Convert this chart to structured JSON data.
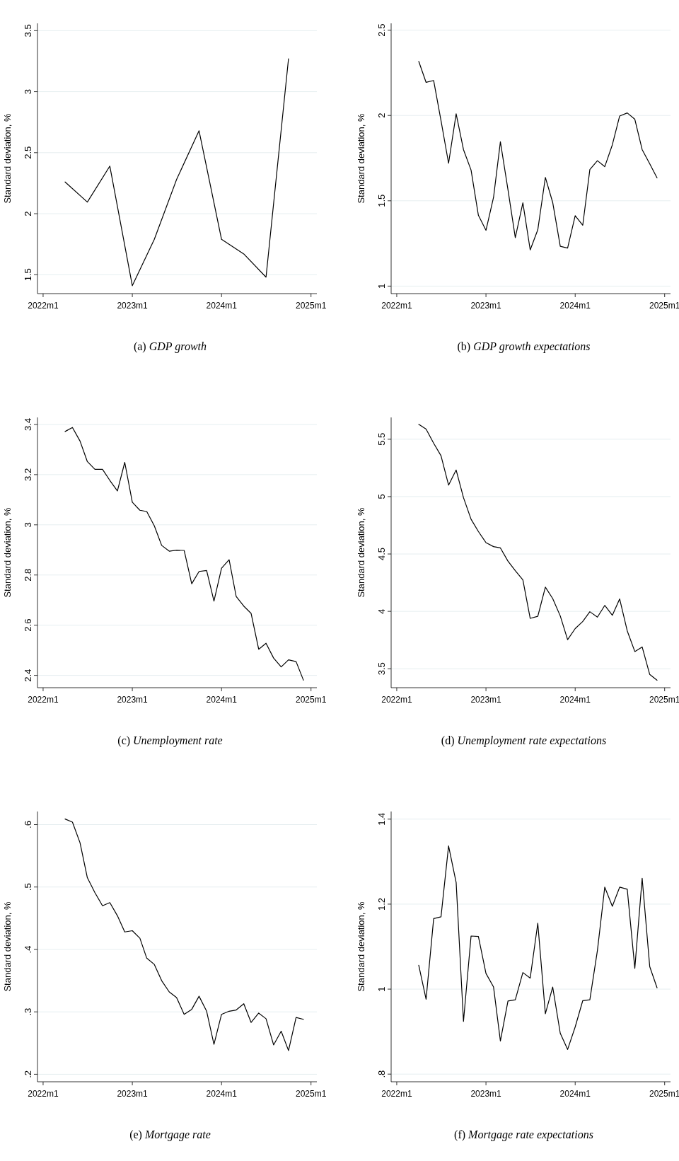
{
  "chart_data": [
    {
      "type": "line",
      "title": "(a) GDP growth",
      "ylabel": "Standard deviation, %",
      "color": "#000000",
      "grid": "y",
      "xlim": [
        "2021-12-09",
        "2025-01-25"
      ],
      "xticks": [
        {
          "value": "2022-01",
          "label": "2022m1"
        },
        {
          "value": "2023-01",
          "label": "2023m1"
        },
        {
          "value": "2024-01",
          "label": "2024m1"
        },
        {
          "value": "2025-01",
          "label": "2025m1"
        }
      ],
      "ylim": [
        1.345,
        3.56
      ],
      "yticks": [
        1.5,
        2,
        2.5,
        3,
        3.5
      ],
      "x": [
        "2022-04",
        "2022-07",
        "2022-10",
        "2023-01",
        "2023-04",
        "2023-07",
        "2023-10",
        "2024-01",
        "2024-04",
        "2024-07",
        "2024-10"
      ],
      "values": [
        2.26,
        2.095,
        2.39,
        1.41,
        1.79,
        2.28,
        2.68,
        1.79,
        1.67,
        1.48,
        3.27
      ]
    },
    {
      "type": "line",
      "title": "(b) GDP growth expectations",
      "ylabel": "Standard deviation, %",
      "color": "#000000",
      "grid": "y",
      "xlim": [
        "2021-12-09",
        "2025-01-25"
      ],
      "xticks": [
        {
          "value": "2022-01",
          "label": "2022m1"
        },
        {
          "value": "2023-01",
          "label": "2023m1"
        },
        {
          "value": "2024-01",
          "label": "2024m1"
        },
        {
          "value": "2025-01",
          "label": "2025m1"
        }
      ],
      "ylim": [
        0.956,
        2.54
      ],
      "yticks": [
        1,
        1.5,
        2,
        2.5
      ],
      "x": [
        "2022-04",
        "2022-05",
        "2022-06",
        "2022-07",
        "2022-08",
        "2022-09",
        "2022-10",
        "2022-11",
        "2022-12",
        "2023-01",
        "2023-02",
        "2023-03",
        "2023-04",
        "2023-05",
        "2023-06",
        "2023-07",
        "2023-08",
        "2023-09",
        "2023-10",
        "2023-11",
        "2023-12",
        "2024-01",
        "2024-02",
        "2024-03",
        "2024-04",
        "2024-05",
        "2024-06",
        "2024-07",
        "2024-08",
        "2024-09",
        "2024-10",
        "2024-11",
        "2024-12"
      ],
      "values": [
        2.317,
        2.194,
        2.205,
        1.97,
        1.72,
        2.01,
        1.8,
        1.68,
        1.415,
        1.327,
        1.52,
        1.846,
        1.565,
        1.284,
        1.488,
        1.212,
        1.33,
        1.637,
        1.49,
        1.233,
        1.223,
        1.413,
        1.357,
        1.683,
        1.735,
        1.7,
        1.828,
        1.997,
        2.015,
        1.978,
        1.8,
        1.717,
        1.634
      ]
    },
    {
      "type": "line",
      "title": "(c) Unemployment rate",
      "ylabel": "Standard deviation, %",
      "color": "#000000",
      "grid": "y",
      "xlim": [
        "2021-12-09",
        "2025-01-25"
      ],
      "xticks": [
        {
          "value": "2022-01",
          "label": "2022m1"
        },
        {
          "value": "2023-01",
          "label": "2023m1"
        },
        {
          "value": "2024-01",
          "label": "2024m1"
        },
        {
          "value": "2025-01",
          "label": "2025m1"
        }
      ],
      "ylim": [
        2.351,
        3.428
      ],
      "yticks": [
        2.4,
        2.6,
        2.8,
        3,
        3.2,
        3.4
      ],
      "x": [
        "2022-04",
        "2022-05",
        "2022-06",
        "2022-07",
        "2022-08",
        "2022-09",
        "2022-10",
        "2022-11",
        "2022-12",
        "2023-01",
        "2023-02",
        "2023-03",
        "2023-04",
        "2023-05",
        "2023-06",
        "2023-07",
        "2023-08",
        "2023-09",
        "2023-10",
        "2023-11",
        "2023-12",
        "2024-01",
        "2024-02",
        "2024-03",
        "2024-04",
        "2024-05",
        "2024-06",
        "2024-07",
        "2024-08",
        "2024-09",
        "2024-10",
        "2024-11",
        "2024-12"
      ],
      "values": [
        3.372,
        3.388,
        3.334,
        3.252,
        3.221,
        3.221,
        3.177,
        3.135,
        3.249,
        3.09,
        3.058,
        3.053,
        2.996,
        2.918,
        2.895,
        2.899,
        2.898,
        2.765,
        2.814,
        2.818,
        2.696,
        2.827,
        2.861,
        2.714,
        2.676,
        2.647,
        2.504,
        2.528,
        2.469,
        2.434,
        2.462,
        2.455,
        2.381
      ]
    },
    {
      "type": "line",
      "title": "(d) Unemployment rate expectations",
      "ylabel": "Standard deviation, %",
      "color": "#000000",
      "grid": "y",
      "xlim": [
        "2021-12-09",
        "2025-01-25"
      ],
      "xticks": [
        {
          "value": "2022-01",
          "label": "2022m1"
        },
        {
          "value": "2023-01",
          "label": "2023m1"
        },
        {
          "value": "2024-01",
          "label": "2024m1"
        },
        {
          "value": "2025-01",
          "label": "2025m1"
        }
      ],
      "ylim": [
        3.335,
        5.69
      ],
      "yticks": [
        3.5,
        4,
        4.5,
        5,
        5.5
      ],
      "x": [
        "2022-04",
        "2022-05",
        "2022-06",
        "2022-07",
        "2022-08",
        "2022-09",
        "2022-10",
        "2022-11",
        "2022-12",
        "2023-01",
        "2023-02",
        "2023-03",
        "2023-04",
        "2023-05",
        "2023-06",
        "2023-07",
        "2023-08",
        "2023-09",
        "2023-10",
        "2023-11",
        "2023-12",
        "2024-01",
        "2024-02",
        "2024-03",
        "2024-04",
        "2024-05",
        "2024-06",
        "2024-07",
        "2024-08",
        "2024-09",
        "2024-10",
        "2024-11",
        "2024-12"
      ],
      "values": [
        5.63,
        5.588,
        5.465,
        5.356,
        5.1,
        5.232,
        4.991,
        4.803,
        4.696,
        4.599,
        4.564,
        4.553,
        4.438,
        4.355,
        4.275,
        3.939,
        3.957,
        4.211,
        4.112,
        3.96,
        3.753,
        3.85,
        3.912,
        3.997,
        3.95,
        4.052,
        3.966,
        4.108,
        3.83,
        3.65,
        3.69,
        3.45,
        3.4
      ]
    },
    {
      "type": "line",
      "title": "(e) Mortgage rate",
      "ylabel": "Standard deviation, %",
      "color": "#000000",
      "grid": "y",
      "xlim": [
        "2021-12-09",
        "2025-01-25"
      ],
      "xticks": [
        {
          "value": "2022-01",
          "label": "2022m1"
        },
        {
          "value": "2023-01",
          "label": "2023m1"
        },
        {
          "value": "2024-01",
          "label": "2024m1"
        },
        {
          "value": "2025-01",
          "label": "2025m1"
        }
      ],
      "ylim": [
        0.188,
        0.621
      ],
      "yticks": [
        {
          "value": 0.2,
          "label": ".2"
        },
        {
          "value": 0.3,
          "label": ".3"
        },
        {
          "value": 0.4,
          "label": ".4"
        },
        {
          "value": 0.5,
          "label": ".5"
        },
        {
          "value": 0.6,
          "label": ".6"
        }
      ],
      "x": [
        "2022-04",
        "2022-05",
        "2022-06",
        "2022-07",
        "2022-08",
        "2022-09",
        "2022-10",
        "2022-11",
        "2022-12",
        "2023-01",
        "2023-02",
        "2023-03",
        "2023-04",
        "2023-05",
        "2023-06",
        "2023-07",
        "2023-08",
        "2023-09",
        "2023-10",
        "2023-11",
        "2023-12",
        "2024-01",
        "2024-02",
        "2024-03",
        "2024-04",
        "2024-05",
        "2024-06",
        "2024-07",
        "2024-08",
        "2024-09",
        "2024-10",
        "2024-11",
        "2024-12"
      ],
      "values": [
        0.609,
        0.604,
        0.571,
        0.515,
        0.491,
        0.47,
        0.475,
        0.454,
        0.428,
        0.43,
        0.418,
        0.386,
        0.376,
        0.35,
        0.332,
        0.323,
        0.296,
        0.304,
        0.325,
        0.301,
        0.248,
        0.296,
        0.301,
        0.303,
        0.313,
        0.283,
        0.298,
        0.289,
        0.247,
        0.269,
        0.238,
        0.291,
        0.288
      ]
    },
    {
      "type": "line",
      "title": "(f) Mortgage rate expectations",
      "ylabel": "Standard deviation, %",
      "color": "#000000",
      "grid": "y",
      "xlim": [
        "2021-12-09",
        "2025-01-25"
      ],
      "xticks": [
        {
          "value": "2022-01",
          "label": "2022m1"
        },
        {
          "value": "2023-01",
          "label": "2023m1"
        },
        {
          "value": "2024-01",
          "label": "2024m1"
        },
        {
          "value": "2025-01",
          "label": "2025m1"
        }
      ],
      "ylim": [
        0.782,
        1.418
      ],
      "yticks": [
        {
          "value": 0.8,
          "label": ".8"
        },
        1,
        1.2,
        1.4
      ],
      "x": [
        "2022-04",
        "2022-05",
        "2022-06",
        "2022-07",
        "2022-08",
        "2022-09",
        "2022-10",
        "2022-11",
        "2022-12",
        "2023-01",
        "2023-02",
        "2023-03",
        "2023-04",
        "2023-05",
        "2023-06",
        "2023-07",
        "2023-08",
        "2023-09",
        "2023-10",
        "2023-11",
        "2023-12",
        "2024-01",
        "2024-02",
        "2024-03",
        "2024-04",
        "2024-05",
        "2024-06",
        "2024-07",
        "2024-08",
        "2024-09",
        "2024-10",
        "2024-11",
        "2024-12"
      ],
      "values": [
        1.056,
        0.976,
        1.166,
        1.17,
        1.337,
        1.251,
        0.924,
        1.125,
        1.124,
        1.037,
        1.005,
        0.878,
        0.972,
        0.975,
        1.039,
        1.026,
        1.155,
        0.942,
        1.005,
        0.896,
        0.858,
        0.911,
        0.973,
        0.975,
        1.091,
        1.24,
        1.195,
        1.24,
        1.235,
        1.049,
        1.261,
        1.053,
        1.003
      ]
    }
  ]
}
